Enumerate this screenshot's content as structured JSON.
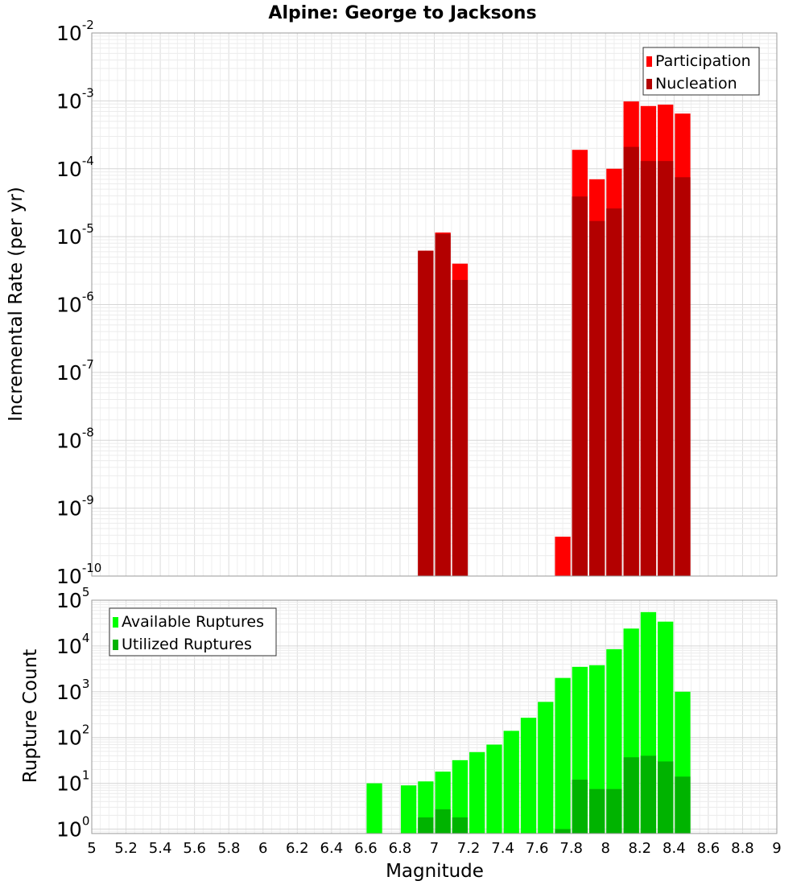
{
  "chart_data": [
    {
      "type": "bar",
      "title": "Alpine: George to Jacksons",
      "xlabel": "Magnitude",
      "ylabel": "Incremental Rate (per yr)",
      "yscale": "log",
      "xlim": [
        5,
        9
      ],
      "ylim": [
        1e-10,
        0.01
      ],
      "x_ticks": [
        "5",
        "5.2",
        "5.4",
        "5.6",
        "5.8",
        "6",
        "6.2",
        "6.4",
        "6.6",
        "6.8",
        "7",
        "7.2",
        "7.4",
        "7.6",
        "7.8",
        "8",
        "8.2",
        "8.4",
        "8.6",
        "8.8",
        "9"
      ],
      "y_tick_base": "10",
      "y_tick_exponents": [
        "-10",
        "-9",
        "-8",
        "-7",
        "-6",
        "-5",
        "-4",
        "-3",
        "-2"
      ],
      "legend_position": "top-right",
      "grid": true,
      "series": [
        {
          "name": "Participation",
          "color": "#ff0000",
          "x": [
            6.95,
            7.05,
            7.15,
            7.75,
            7.85,
            7.95,
            8.05,
            8.15,
            8.25,
            8.35,
            8.45
          ],
          "values": [
            6.2e-06,
            1.15e-05,
            4e-06,
            3.8e-10,
            0.00019,
            7e-05,
            0.0001,
            0.00098,
            0.00084,
            0.00088,
            0.00065
          ]
        },
        {
          "name": "Nucleation",
          "color": "#b30000",
          "x": [
            6.95,
            7.05,
            7.15,
            7.85,
            7.95,
            8.05,
            8.15,
            8.25,
            8.35,
            8.45
          ],
          "values": [
            6.2e-06,
            1.1e-05,
            2.3e-06,
            3.9e-05,
            1.7e-05,
            2.6e-05,
            0.00021,
            0.00013,
            0.00013,
            7.5e-05
          ]
        }
      ]
    },
    {
      "type": "bar",
      "xlabel": "Magnitude",
      "ylabel": "Rupture Count",
      "yscale": "log",
      "xlim": [
        5,
        9
      ],
      "ylim": [
        0.8,
        100000.0
      ],
      "x_ticks": [
        "5",
        "5.2",
        "5.4",
        "5.6",
        "5.8",
        "6",
        "6.2",
        "6.4",
        "6.6",
        "6.8",
        "7",
        "7.2",
        "7.4",
        "7.6",
        "7.8",
        "8",
        "8.2",
        "8.4",
        "8.6",
        "8.8",
        "9"
      ],
      "y_tick_base": "10",
      "y_tick_exponents": [
        "0",
        "1",
        "2",
        "3",
        "4",
        "5"
      ],
      "legend_position": "top-left",
      "grid": true,
      "series": [
        {
          "name": "Available Ruptures",
          "color": "#00ff00",
          "x": [
            6.65,
            6.85,
            6.95,
            7.05,
            7.15,
            7.25,
            7.35,
            7.45,
            7.55,
            7.65,
            7.75,
            7.85,
            7.95,
            8.05,
            8.15,
            8.25,
            8.35,
            8.45
          ],
          "values": [
            10,
            9,
            11,
            18,
            32,
            48,
            70,
            140,
            270,
            600,
            2000,
            3500,
            3800,
            8500,
            24000,
            55000,
            34000,
            1000
          ]
        },
        {
          "name": "Utilized Ruptures",
          "color": "#00b300",
          "x": [
            6.95,
            7.05,
            7.15,
            7.75,
            7.85,
            7.95,
            8.05,
            8.15,
            8.25,
            8.35,
            8.45
          ],
          "values": [
            1.8,
            2.7,
            1.8,
            1.0,
            12,
            7.5,
            7.5,
            37,
            40,
            30,
            14
          ]
        }
      ]
    }
  ]
}
